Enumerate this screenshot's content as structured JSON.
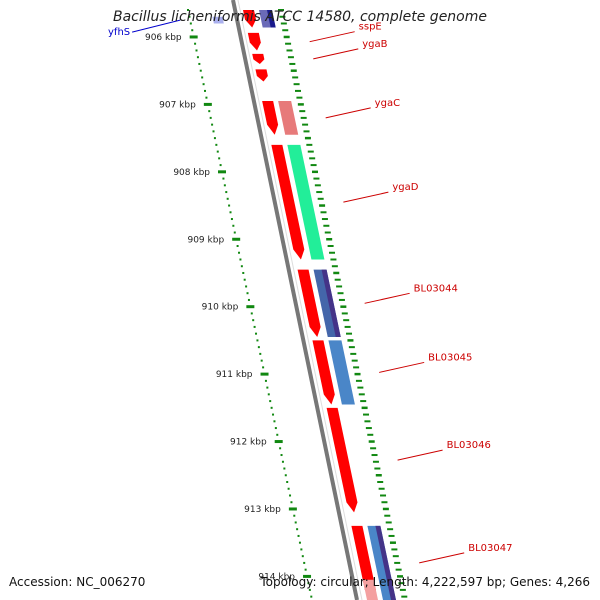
{
  "title": "Bacillus licheniformis ATCC 14580, complete genome",
  "accession": "Accession: NC_006270",
  "summary": "Topology: circular; Length: 4,222,597 bp; Genes: 4,266",
  "ruler": {
    "start_kbp": 905.6,
    "end_kbp": 914.35,
    "labels": [
      "906 kbp",
      "907 kbp",
      "908 kbp",
      "909 kbp",
      "910 kbp",
      "911 kbp",
      "912 kbp",
      "913 kbp",
      "914 kbp"
    ],
    "major_kbp": [
      906,
      907,
      908,
      909,
      910,
      911,
      912,
      913,
      914
    ]
  },
  "colors": {
    "backbone": "#777777",
    "ruler": "#118811",
    "gene_label": "#cc0000",
    "other_label": "#0000cc",
    "cds": "#ff0000"
  },
  "features": [
    {
      "name": "yfhS",
      "start_kbp": 905.7,
      "end_kbp": 905.8,
      "track": "cds-left",
      "color": "#aab0ee",
      "label_side": "left",
      "label_color": "#0000cc"
    },
    {
      "name": "",
      "start_kbp": 905.6,
      "end_kbp": 905.86,
      "track": "cds",
      "color": "#ff0000",
      "arrow": true
    },
    {
      "name": "",
      "start_kbp": 905.6,
      "end_kbp": 905.86,
      "track": "inner",
      "color": "#6a6ab8"
    },
    {
      "name": "",
      "start_kbp": 905.6,
      "end_kbp": 905.86,
      "track": "outer",
      "color": "#1a1a8c"
    },
    {
      "name": "sspE",
      "start_kbp": 905.94,
      "end_kbp": 906.2,
      "track": "cds",
      "color": "#ff0000",
      "arrow": true,
      "label_side": "right",
      "label_color": "#cc0000"
    },
    {
      "name": "ygaB",
      "start_kbp": 906.25,
      "end_kbp": 906.4,
      "track": "cds",
      "color": "#ff0000",
      "arrow": true,
      "label_side": "right",
      "label_color": "#cc0000"
    },
    {
      "name": "",
      "start_kbp": 906.48,
      "end_kbp": 906.66,
      "track": "cds",
      "color": "#ff0000",
      "arrow": true
    },
    {
      "name": "ygaC",
      "start_kbp": 906.95,
      "end_kbp": 907.45,
      "track": "cds",
      "color": "#ff0000",
      "arrow": true,
      "label_side": "right",
      "label_color": "#cc0000"
    },
    {
      "name": "",
      "start_kbp": 906.95,
      "end_kbp": 907.45,
      "track": "inner",
      "color": "#e77a7a"
    },
    {
      "name": "ygaD",
      "start_kbp": 907.6,
      "end_kbp": 909.3,
      "track": "cds",
      "color": "#ff0000",
      "arrow": true,
      "label_side": "right",
      "label_color": "#cc0000"
    },
    {
      "name": "",
      "start_kbp": 907.6,
      "end_kbp": 909.3,
      "track": "inner",
      "color": "#22ee99"
    },
    {
      "name": "BL03044",
      "start_kbp": 909.45,
      "end_kbp": 910.45,
      "track": "cds",
      "color": "#ff0000",
      "arrow": true,
      "label_side": "right",
      "label_color": "#cc0000"
    },
    {
      "name": "",
      "start_kbp": 909.45,
      "end_kbp": 910.45,
      "track": "inner",
      "color": "#4466aa"
    },
    {
      "name": "",
      "start_kbp": 909.45,
      "end_kbp": 910.45,
      "track": "outer",
      "color": "#443388"
    },
    {
      "name": "BL03045",
      "start_kbp": 910.5,
      "end_kbp": 911.45,
      "track": "cds",
      "color": "#ff0000",
      "arrow": true,
      "label_side": "right",
      "label_color": "#cc0000"
    },
    {
      "name": "",
      "start_kbp": 910.5,
      "end_kbp": 911.45,
      "track": "inner",
      "color": "#4a86c8"
    },
    {
      "name": "BL03046",
      "start_kbp": 911.5,
      "end_kbp": 913.05,
      "track": "cds",
      "color": "#ff0000",
      "arrow": true,
      "label_side": "right",
      "label_color": "#cc0000"
    },
    {
      "name": "BL03047",
      "start_kbp": 913.25,
      "end_kbp": 914.35,
      "track": "cds",
      "color": "#ff0000",
      "arrow": true,
      "label_side": "right",
      "label_color": "#cc0000"
    },
    {
      "name": "",
      "start_kbp": 913.25,
      "end_kbp": 914.35,
      "track": "inner",
      "color": "#4a86c8"
    },
    {
      "name": "",
      "start_kbp": 913.25,
      "end_kbp": 914.35,
      "track": "outer",
      "color": "#443388"
    },
    {
      "name": "",
      "start_kbp": 914.05,
      "end_kbp": 914.35,
      "track": "cds-pink",
      "color": "#f4a0a0"
    }
  ]
}
